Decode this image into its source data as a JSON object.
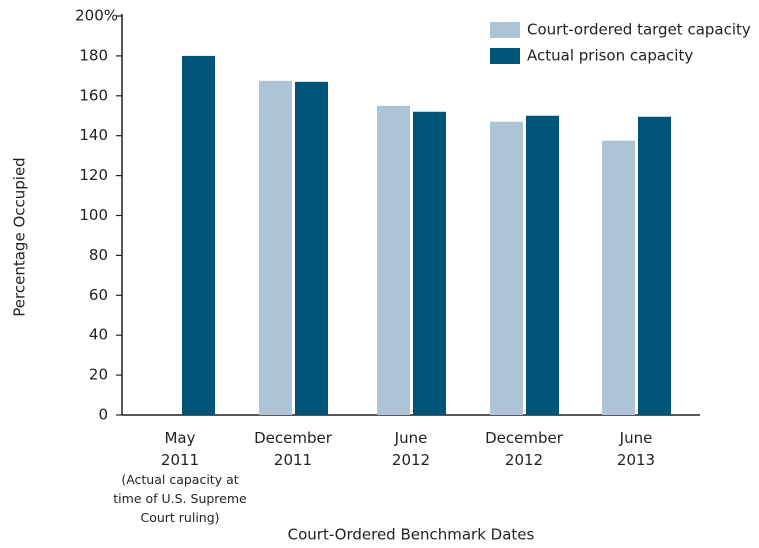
{
  "chart_data": {
    "type": "bar",
    "categories": [
      "May 2011",
      "December 2011",
      "June 2012",
      "December 2012",
      "June 2013"
    ],
    "category_note": "(Actual capacity at time of U.S. Supreme Court ruling)",
    "series": [
      {
        "name": "Court-ordered target capacity",
        "color": "#adc3d6",
        "values": [
          null,
          167.5,
          155,
          147,
          137.5
        ]
      },
      {
        "name": "Actual prison capacity",
        "color": "#005477",
        "values": [
          180,
          167,
          152,
          150,
          149.5
        ]
      }
    ],
    "ylim": [
      0,
      200
    ],
    "yticks": [
      0,
      20,
      40,
      60,
      80,
      100,
      120,
      140,
      160,
      180,
      {
        "value": 200,
        "label": "200%"
      }
    ],
    "y_label": "Percentage Occupied",
    "x_label": "Court-Ordered Benchmark Dates",
    "legend": "upper-right"
  }
}
